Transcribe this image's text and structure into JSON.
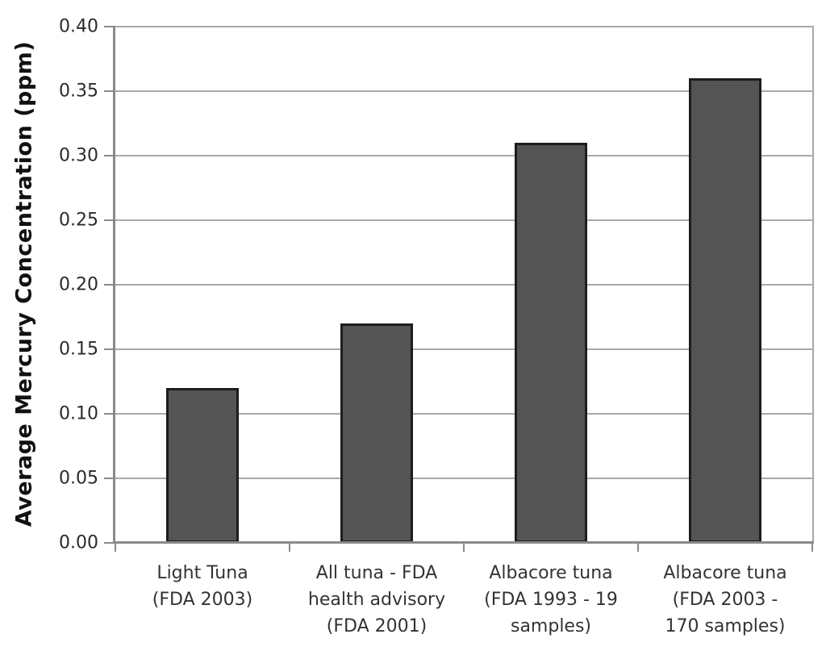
{
  "chart_data": {
    "type": "bar",
    "title": "",
    "xlabel": "",
    "ylabel": "Average Mercury Concentration (ppm)",
    "ylim": [
      0,
      0.4
    ],
    "ytick_step": 0.05,
    "yticks": [
      "0.00",
      "0.05",
      "0.10",
      "0.15",
      "0.20",
      "0.25",
      "0.30",
      "0.35",
      "0.40"
    ],
    "grid": true,
    "legend": false,
    "categories": [
      {
        "label": "Light Tuna (FDA 2003)",
        "lines": [
          "Light Tuna",
          "(FDA 2003)"
        ]
      },
      {
        "label": "All tuna - FDA health advisory (FDA 2001)",
        "lines": [
          "All tuna - FDA",
          "health advisory",
          "(FDA 2001)"
        ]
      },
      {
        "label": "Albacore tuna (FDA 1993 - 19 samples)",
        "lines": [
          "Albacore tuna",
          "(FDA 1993 - 19",
          "samples)"
        ]
      },
      {
        "label": "Albacore tuna (FDA 2003 - 170 samples)",
        "lines": [
          "Albacore tuna",
          "(FDA 2003 -",
          "170 samples)"
        ]
      }
    ],
    "values": [
      0.12,
      0.17,
      0.31,
      0.36
    ],
    "colors": {
      "bar_fill": "#545454",
      "bar_border": "#1d1d1d",
      "gridline": "#a9a9a9",
      "axis": "#8a8a8a",
      "tick_text": "#2b2b2b",
      "category_text": "#333333",
      "axis_title_text": "#111111",
      "background": "#ffffff"
    }
  }
}
